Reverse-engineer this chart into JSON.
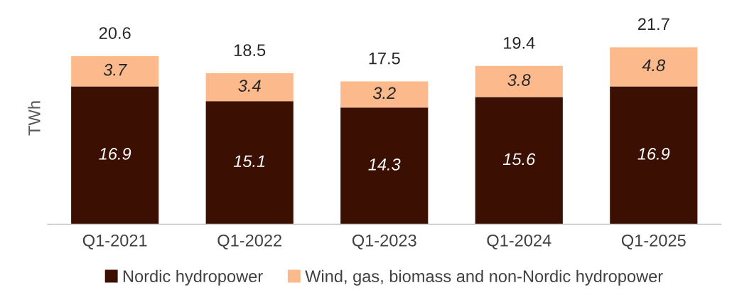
{
  "chart_data": {
    "type": "bar",
    "stacked": true,
    "ylabel": "TWh",
    "categories": [
      "Q1-2021",
      "Q1-2022",
      "Q1-2023",
      "Q1-2024",
      "Q1-2025"
    ],
    "series": [
      {
        "name": "Nordic hydropower",
        "color": "#3b0f02",
        "values": [
          16.9,
          15.1,
          14.3,
          15.6,
          16.9
        ]
      },
      {
        "name": "Wind, gas, biomass and non-Nordic hydropower",
        "color": "#fbb98c",
        "values": [
          3.7,
          3.4,
          3.2,
          3.8,
          4.8
        ]
      }
    ],
    "data_labels": true,
    "totals": [
      "20.6",
      "18.5",
      "17.5",
      "19.4",
      "21.7"
    ],
    "legend": "bottom",
    "grid": false,
    "tick_labels": "x"
  }
}
